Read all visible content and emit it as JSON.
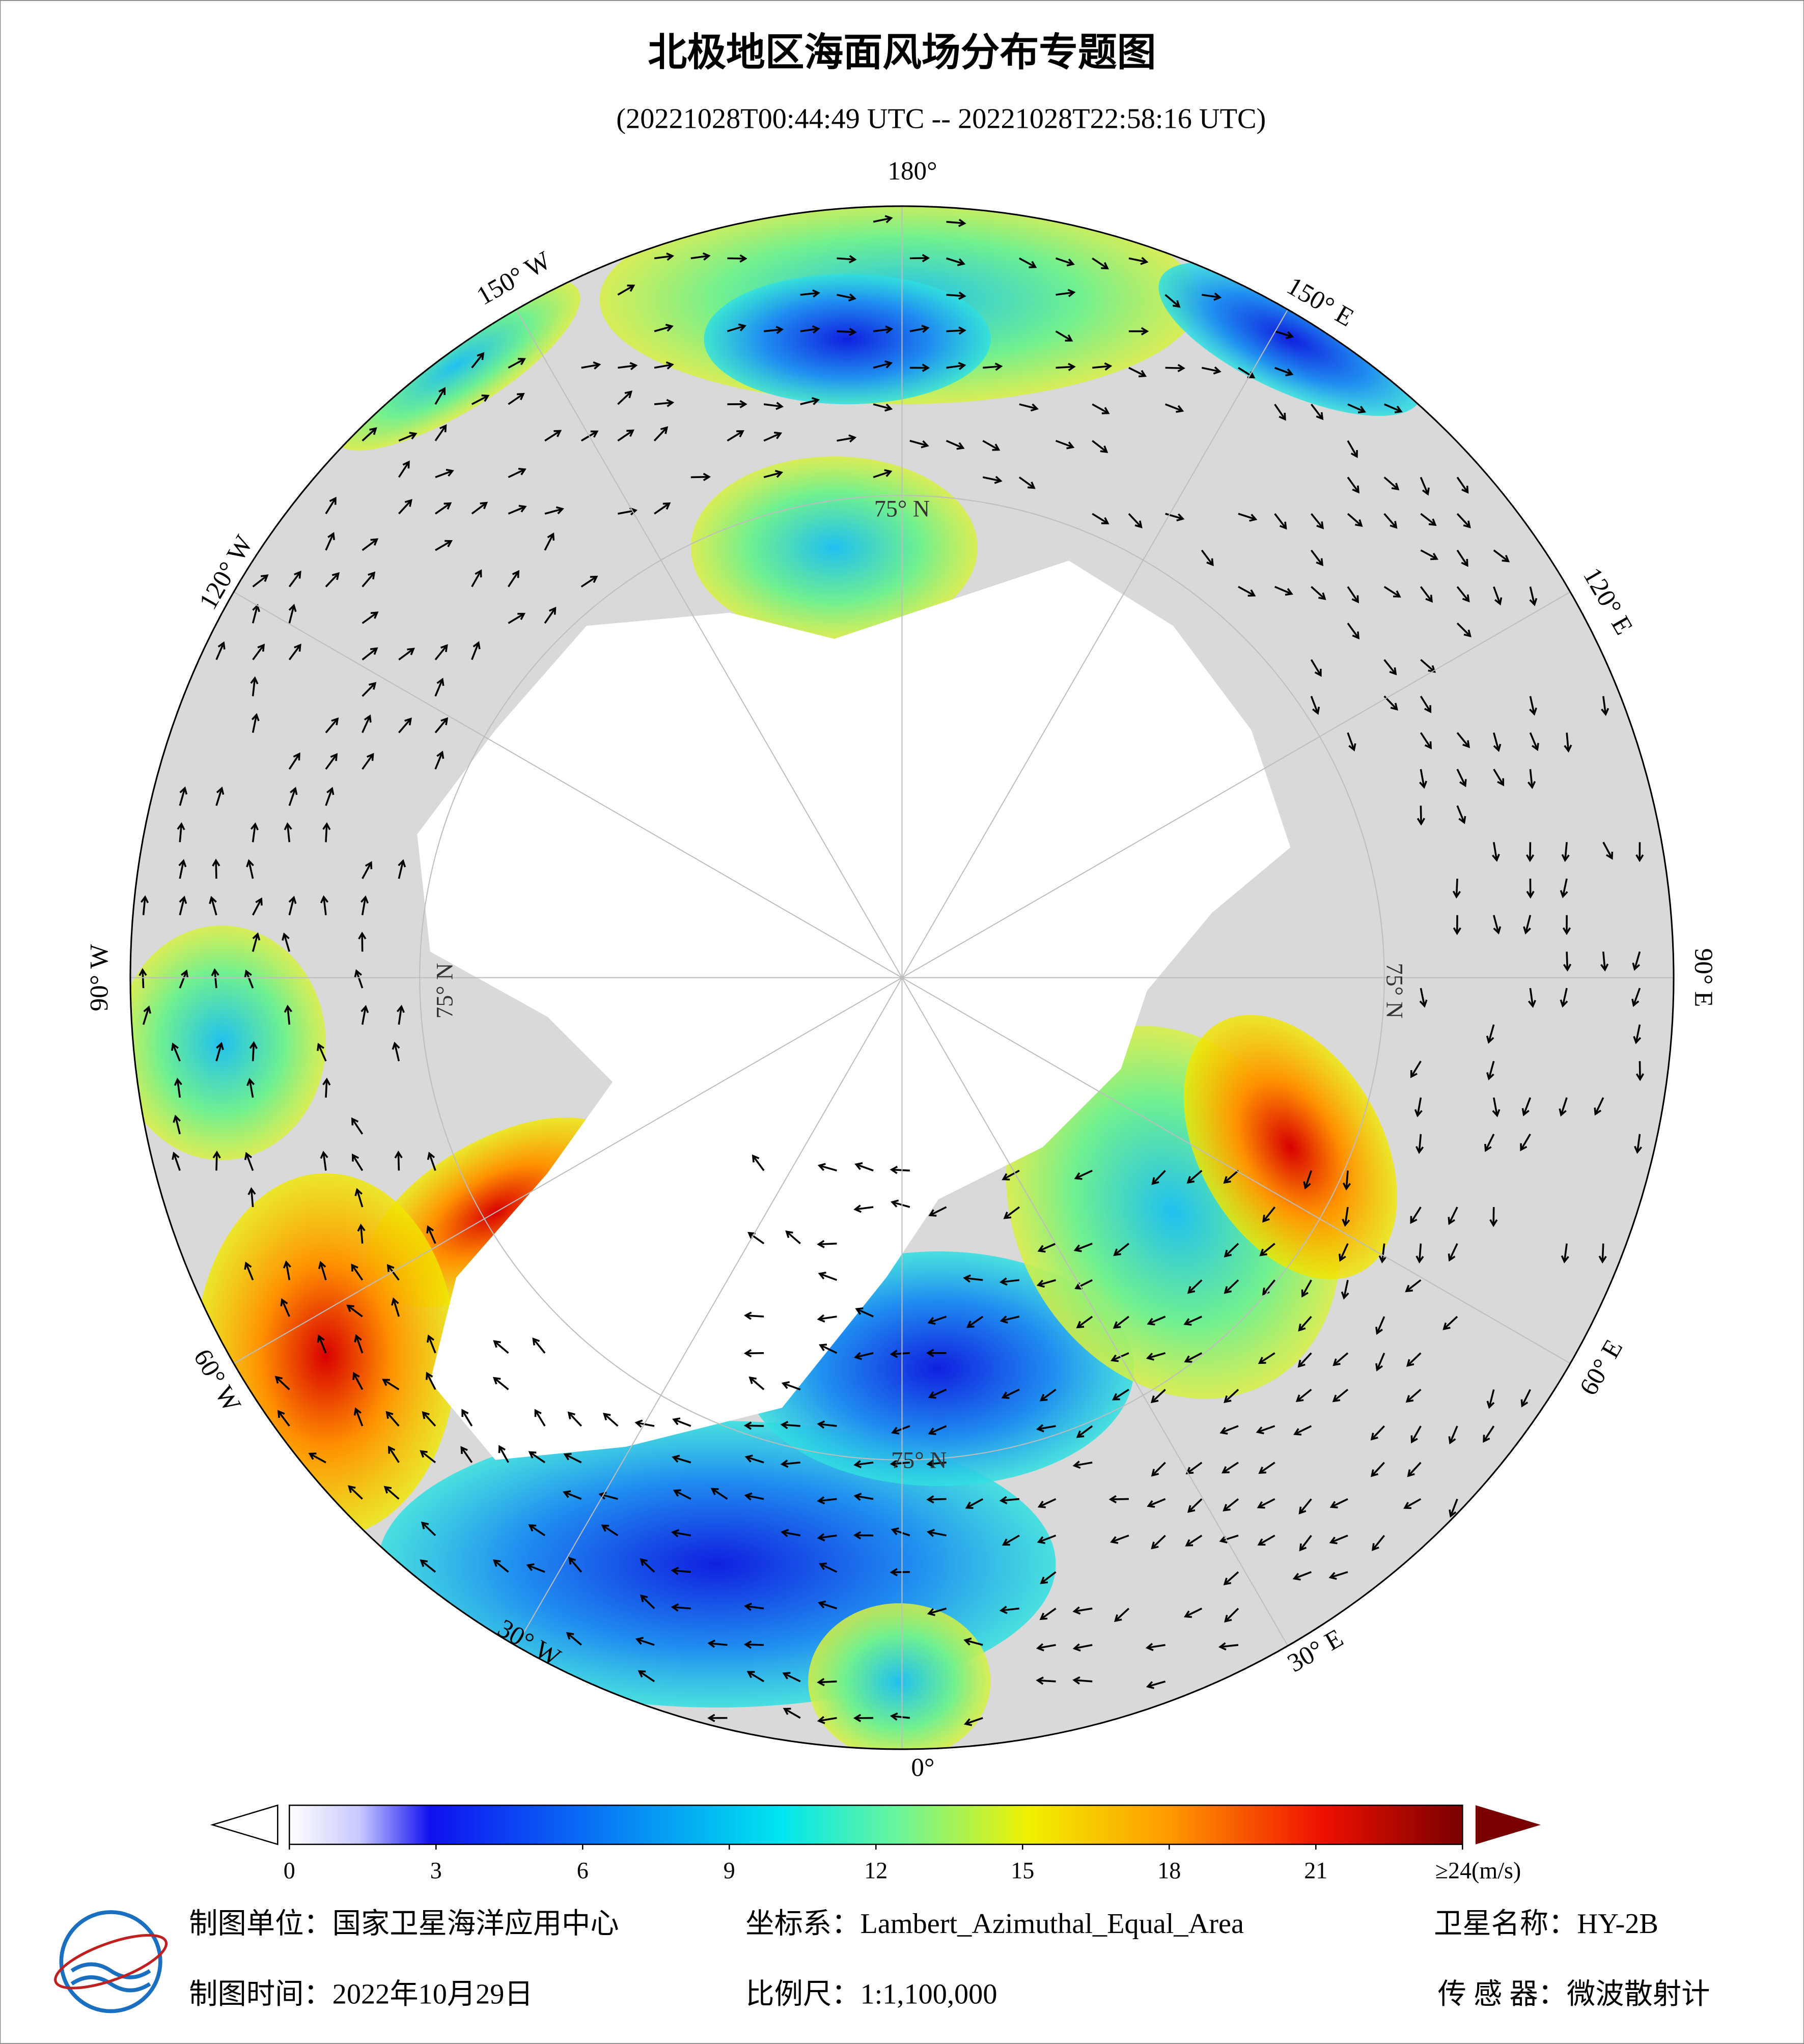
{
  "header": {
    "title": "北极地区海面风场分布专题图",
    "subtitle": "(20221028T00:44:49 UTC -- 20221028T22:58:16 UTC)"
  },
  "map": {
    "lon_labels": [
      "180°",
      "150° E",
      "120° E",
      "90° E",
      "60° E",
      "30° E",
      "0°",
      "30° W",
      "60° W",
      "90° W",
      "120° W",
      "150° W"
    ],
    "lat_labels": [
      "75° N",
      "75° N",
      "75° N",
      "75° N"
    ]
  },
  "colorbar": {
    "ticks": [
      0,
      3,
      6,
      9,
      12,
      15,
      18,
      21,
      {
        "value": 24,
        "label": "≥24(m/s)"
      }
    ]
  },
  "footer": {
    "producer": "制图单位：国家卫星海洋应用中心",
    "crs": "坐标系：Lambert_Azimuthal_Equal_Area",
    "satellite": "卫星名称：HY-2B",
    "date": "制图时间：2022年10月29日",
    "scale": "比例尺：1:1,100,000",
    "sensor": "传 感 器：微波散射计"
  }
}
